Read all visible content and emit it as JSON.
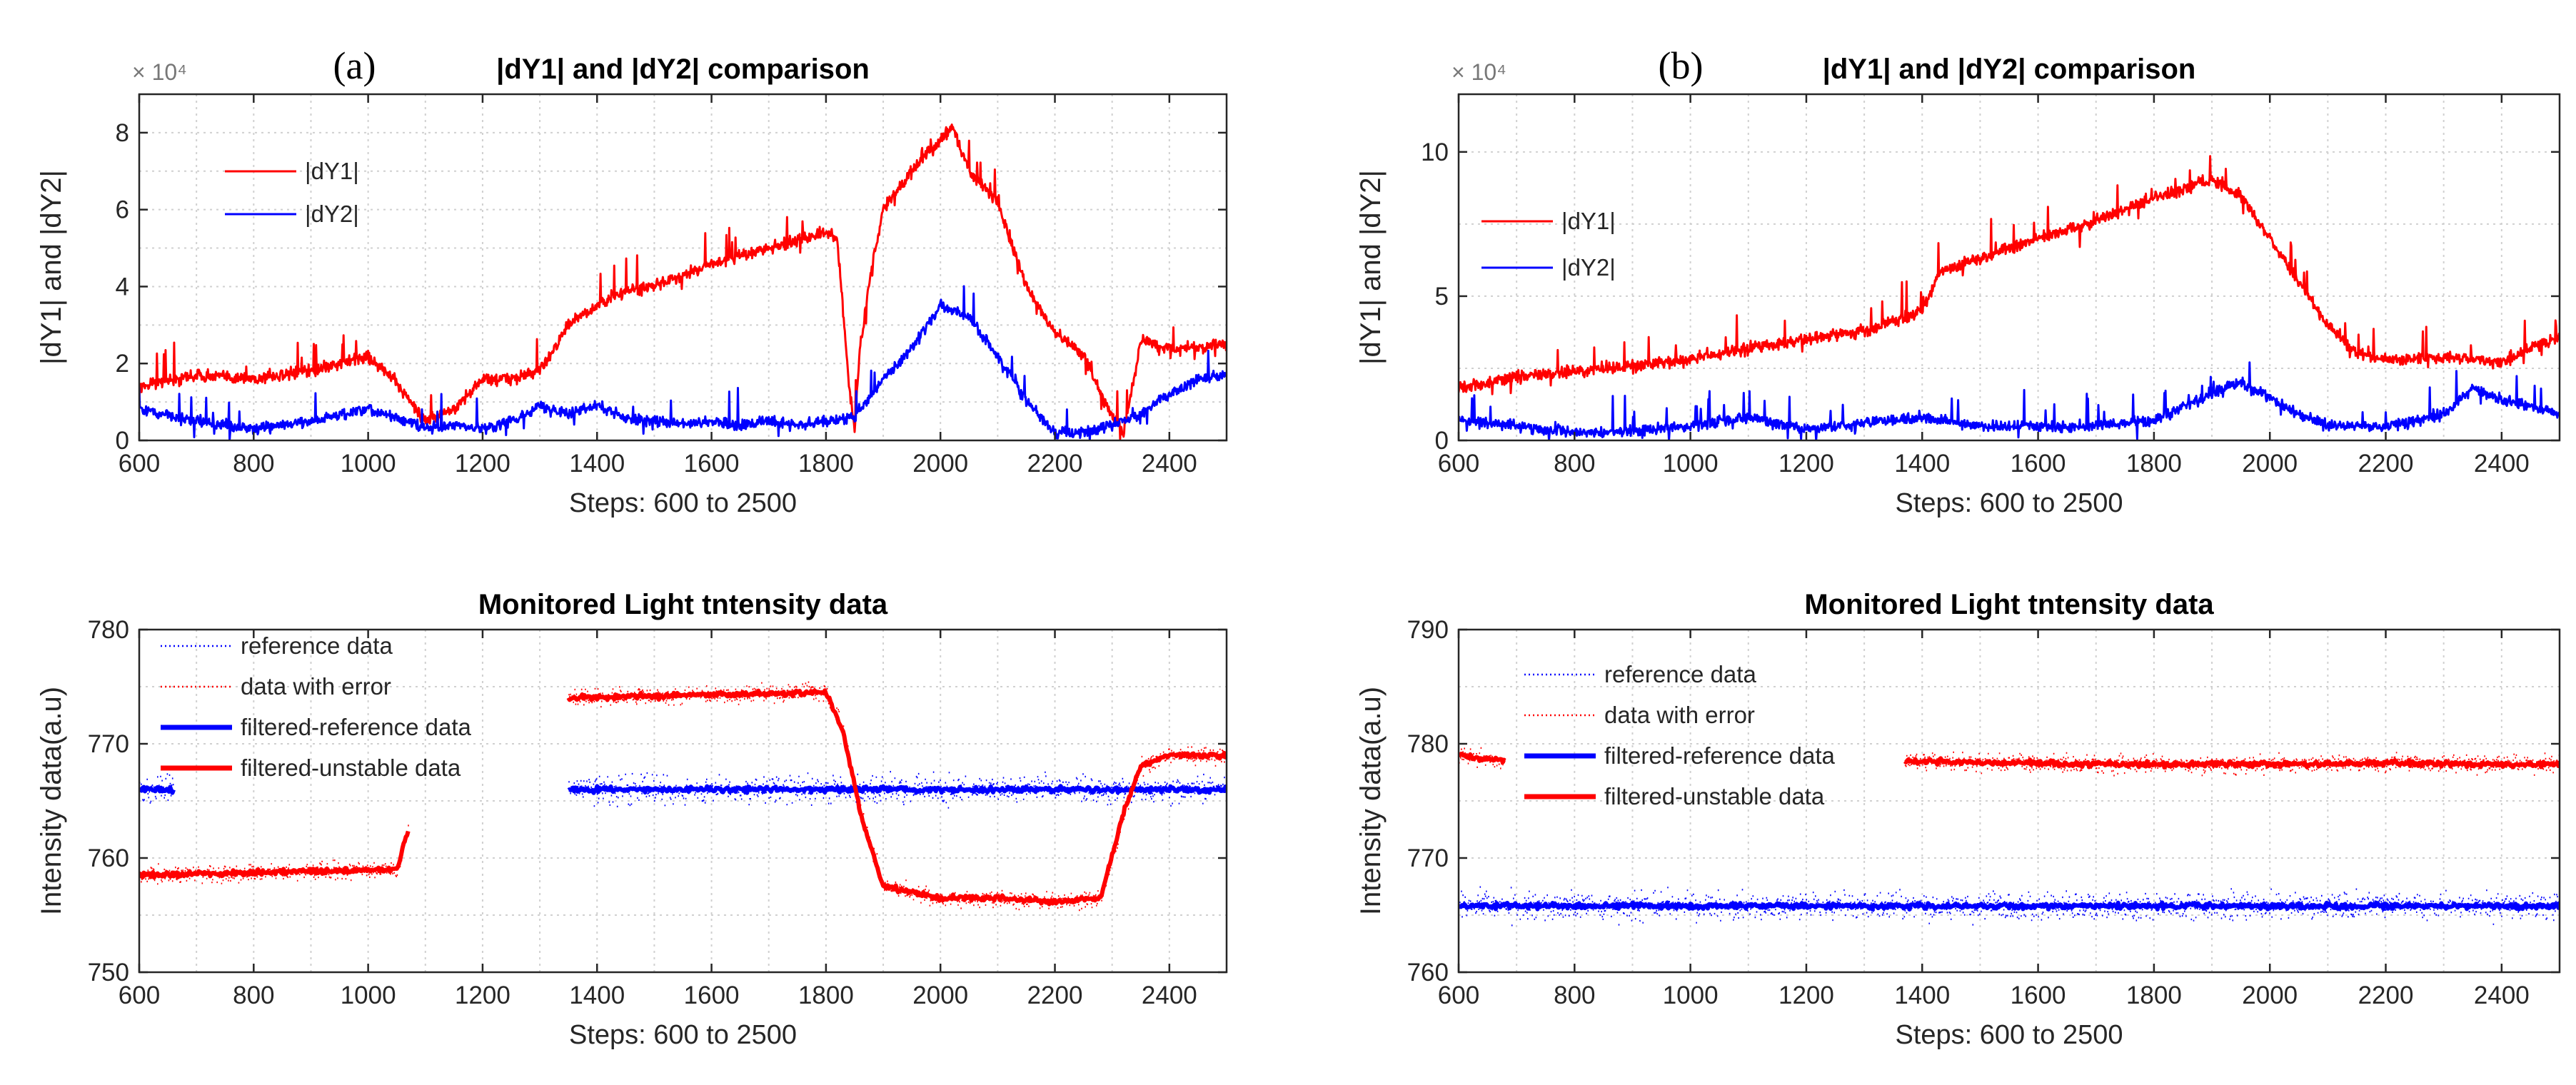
{
  "chart_data": [
    {
      "id": "a-top",
      "type": "line",
      "panel_label": "(a)",
      "title": "|dY1| and |dY2| comparison",
      "xlabel": "Steps: 600 to 2500",
      "ylabel": "|dY1| and |dY2|",
      "y_multiplier": "× 10⁴",
      "xlim": [
        600,
        2500
      ],
      "ylim": [
        0,
        9
      ],
      "xticks": [
        600,
        800,
        1000,
        1200,
        1400,
        1600,
        1800,
        2000,
        2200,
        2400
      ],
      "yticks": [
        0,
        2,
        4,
        6,
        8
      ],
      "grid": true,
      "legend_position": "top-left",
      "series": [
        {
          "name": "|dY1|",
          "color": "#ff0000",
          "style": "solid",
          "x": [
            600,
            700,
            800,
            900,
            1000,
            1050,
            1100,
            1150,
            1200,
            1250,
            1300,
            1350,
            1400,
            1450,
            1500,
            1550,
            1600,
            1650,
            1700,
            1750,
            1800,
            1820,
            1840,
            1850,
            1860,
            1880,
            1900,
            1950,
            2000,
            2020,
            2050,
            2100,
            2150,
            2200,
            2250,
            2300,
            2320,
            2350,
            2400,
            2450,
            2500
          ],
          "y": [
            1.4,
            1.7,
            1.6,
            1.8,
            2.2,
            1.5,
            0.5,
            0.8,
            1.6,
            1.6,
            1.8,
            3.0,
            3.5,
            3.9,
            4.0,
            4.3,
            4.6,
            4.8,
            5.0,
            5.2,
            5.4,
            5.2,
            1.5,
            0.3,
            2.5,
            4.5,
            6.0,
            7.0,
            7.8,
            8.2,
            7.0,
            6.2,
            4.0,
            2.8,
            2.2,
            0.6,
            0.2,
            2.6,
            2.4,
            2.4,
            2.5
          ]
        },
        {
          "name": "|dY2|",
          "color": "#0000ff",
          "style": "solid",
          "x": [
            600,
            700,
            800,
            900,
            1000,
            1050,
            1100,
            1150,
            1200,
            1250,
            1300,
            1350,
            1400,
            1450,
            1500,
            1550,
            1600,
            1650,
            1700,
            1750,
            1800,
            1850,
            1900,
            1950,
            2000,
            2050,
            2100,
            2150,
            2200,
            2250,
            2300,
            2350,
            2400,
            2450,
            2500
          ],
          "y": [
            0.8,
            0.5,
            0.3,
            0.5,
            0.8,
            0.6,
            0.3,
            0.4,
            0.3,
            0.5,
            0.9,
            0.7,
            0.9,
            0.6,
            0.5,
            0.4,
            0.5,
            0.4,
            0.5,
            0.4,
            0.5,
            0.6,
            1.6,
            2.4,
            3.5,
            3.2,
            2.2,
            1.0,
            0.2,
            0.2,
            0.4,
            0.7,
            1.2,
            1.6,
            1.7
          ]
        }
      ]
    },
    {
      "id": "a-bottom",
      "type": "line",
      "title": "Monitored Light tntensity data",
      "xlabel": "Steps: 600 to 2500",
      "ylabel": "Intensity data(a.u)",
      "xlim": [
        600,
        2500
      ],
      "ylim": [
        750,
        780
      ],
      "xticks": [
        600,
        800,
        1000,
        1200,
        1400,
        1600,
        1800,
        2000,
        2200,
        2400
      ],
      "yticks": [
        750,
        760,
        770,
        780
      ],
      "grid": true,
      "legend_position": "top-left",
      "series": [
        {
          "name": "reference data",
          "color": "#0000ff",
          "style": "dotted",
          "segments": [
            {
              "x": [
                600,
                660
              ],
              "y": [
                766,
                766
              ]
            },
            {
              "x": [
                1350,
                2500
              ],
              "y": [
                766,
                766
              ]
            }
          ]
        },
        {
          "name": "data with error",
          "color": "#ff0000",
          "style": "dotted",
          "segments": [
            {
              "x": [
                600,
                1050,
                1070
              ],
              "y": [
                758.5,
                759,
                762.5
              ]
            },
            {
              "x": [
                1350,
                1800,
                1830,
                1860,
                1900,
                2000,
                2100,
                2200,
                2280,
                2320,
                2350,
                2400,
                2500
              ],
              "y": [
                774,
                774.5,
                771,
                764,
                757.5,
                756.5,
                756.5,
                756.2,
                756.5,
                764,
                768,
                769,
                769
              ]
            }
          ]
        },
        {
          "name": "filtered-reference data",
          "color": "#0000ff",
          "style": "thick",
          "segments": [
            {
              "x": [
                600,
                660
              ],
              "y": [
                766,
                766
              ]
            },
            {
              "x": [
                1350,
                2500
              ],
              "y": [
                766,
                766
              ]
            }
          ]
        },
        {
          "name": "filtered-unstable data",
          "color": "#ff0000",
          "style": "thick",
          "segments": [
            {
              "x": [
                600,
                1050,
                1070
              ],
              "y": [
                758.5,
                759,
                762.5
              ]
            },
            {
              "x": [
                1350,
                1800,
                1830,
                1860,
                1900,
                2000,
                2100,
                2200,
                2280,
                2320,
                2350,
                2400,
                2500
              ],
              "y": [
                774,
                774.5,
                771,
                764,
                757.5,
                756.5,
                756.5,
                756.2,
                756.5,
                764,
                768,
                769,
                769
              ]
            }
          ]
        }
      ]
    },
    {
      "id": "b-top",
      "type": "line",
      "panel_label": "(b)",
      "title": "|dY1| and |dY2| comparison",
      "xlabel": "Steps: 600 to 2500",
      "ylabel": "|dY1| and |dY2|",
      "y_multiplier": "× 10⁴",
      "xlim": [
        600,
        2500
      ],
      "ylim": [
        0,
        12
      ],
      "xticks": [
        600,
        800,
        1000,
        1200,
        1400,
        1600,
        1800,
        2000,
        2200,
        2400
      ],
      "yticks": [
        0,
        5,
        10
      ],
      "grid": true,
      "legend_position": "top-left",
      "series": [
        {
          "name": "|dY1|",
          "color": "#ff0000",
          "style": "solid",
          "x": [
            600,
            700,
            800,
            900,
            1000,
            1100,
            1200,
            1300,
            1400,
            1430,
            1450,
            1500,
            1600,
            1700,
            1800,
            1900,
            1950,
            2000,
            2050,
            2100,
            2150,
            2200,
            2300,
            2400,
            2450,
            2500
          ],
          "y": [
            1.8,
            2.2,
            2.4,
            2.6,
            2.8,
            3.2,
            3.5,
            3.8,
            4.5,
            5.8,
            6.0,
            6.3,
            7.0,
            7.6,
            8.4,
            9.0,
            8.5,
            7.0,
            5.5,
            4.0,
            3.0,
            2.8,
            2.9,
            2.7,
            3.2,
            3.6
          ]
        },
        {
          "name": "|dY2|",
          "color": "#0000ff",
          "style": "solid",
          "x": [
            600,
            700,
            800,
            900,
            1000,
            1100,
            1200,
            1300,
            1400,
            1500,
            1600,
            1700,
            1800,
            1900,
            1950,
            2000,
            2050,
            2100,
            2200,
            2300,
            2350,
            2400,
            2500
          ],
          "y": [
            0.7,
            0.5,
            0.3,
            0.3,
            0.5,
            0.8,
            0.4,
            0.6,
            0.8,
            0.5,
            0.5,
            0.5,
            0.7,
            1.6,
            2.0,
            1.5,
            0.9,
            0.5,
            0.5,
            0.9,
            1.8,
            1.4,
            0.9
          ]
        }
      ]
    },
    {
      "id": "b-bottom",
      "type": "line",
      "title": "Monitored Light tntensity data",
      "xlabel": "Steps: 600 to 2500",
      "ylabel": "Intensity data(a.u)",
      "xlim": [
        600,
        2500
      ],
      "ylim": [
        760,
        790
      ],
      "xticks": [
        600,
        800,
        1000,
        1200,
        1400,
        1600,
        1800,
        2000,
        2200,
        2400
      ],
      "yticks": [
        760,
        770,
        780,
        790
      ],
      "grid": true,
      "legend_position": "top-left",
      "series": [
        {
          "name": "reference data",
          "color": "#0000ff",
          "style": "dotted",
          "segments": [
            {
              "x": [
                600,
                2500
              ],
              "y": [
                765.8,
                765.8
              ]
            }
          ]
        },
        {
          "name": "data with error",
          "color": "#ff0000",
          "style": "dotted",
          "segments": [
            {
              "x": [
                600,
                680
              ],
              "y": [
                779,
                778.5
              ]
            },
            {
              "x": [
                1370,
                1600,
                1800,
                2000,
                2200,
                2400,
                2500
              ],
              "y": [
                778.5,
                778.3,
                778.2,
                778.2,
                778.3,
                778.2,
                778.2
              ]
            }
          ]
        },
        {
          "name": "filtered-reference data",
          "color": "#0000ff",
          "style": "thick",
          "segments": [
            {
              "x": [
                600,
                2500
              ],
              "y": [
                765.8,
                765.8
              ]
            }
          ]
        },
        {
          "name": "filtered-unstable data",
          "color": "#ff0000",
          "style": "thick",
          "segments": [
            {
              "x": [
                600,
                680
              ],
              "y": [
                779,
                778.5
              ]
            },
            {
              "x": [
                1370,
                1600,
                1800,
                2000,
                2200,
                2400,
                2500
              ],
              "y": [
                778.5,
                778.3,
                778.2,
                778.2,
                778.3,
                778.2,
                778.2
              ]
            }
          ]
        }
      ]
    }
  ]
}
